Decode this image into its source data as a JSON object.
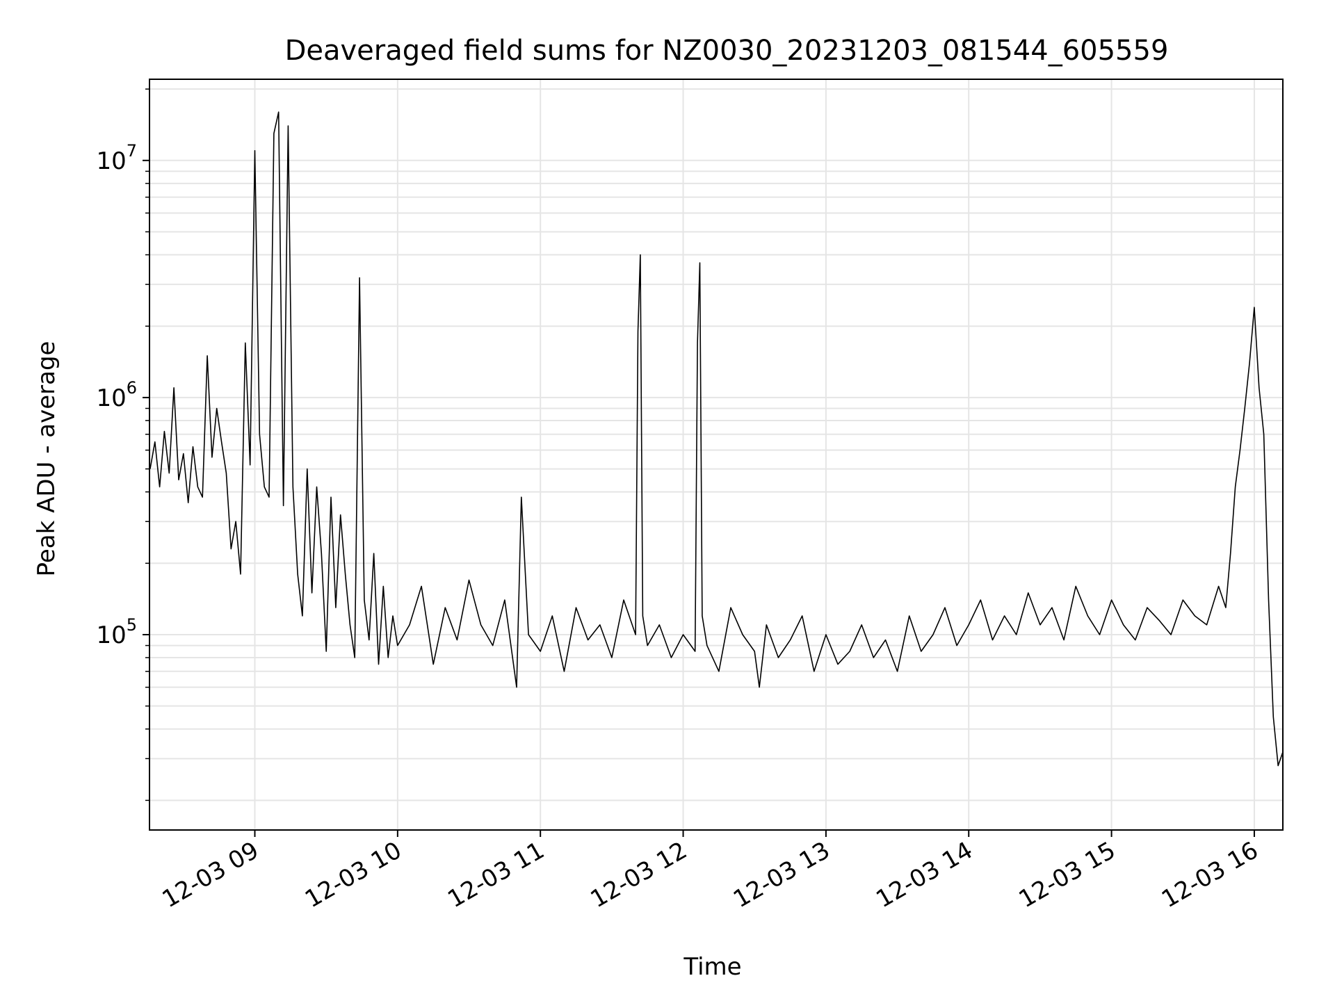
{
  "chart_data": {
    "type": "line",
    "title": "Deaveraged field sums for NZ0030_20231203_081544_605559",
    "xlabel": "Time",
    "ylabel": "Peak ADU - average",
    "x_type": "datetime",
    "xlim": [
      "2023-12-03 08:15:44",
      "2023-12-03 16:12:00"
    ],
    "ylim": [
      15000,
      22000000
    ],
    "y_scale": "log",
    "grid": true,
    "grid_minor_y": true,
    "line_color": "#000000",
    "grid_color": "#e5e5e5",
    "x_ticks": [
      {
        "time": "2023-12-03 09:00",
        "label": "12-03 09"
      },
      {
        "time": "2023-12-03 10:00",
        "label": "12-03 10"
      },
      {
        "time": "2023-12-03 11:00",
        "label": "12-03 11"
      },
      {
        "time": "2023-12-03 12:00",
        "label": "12-03 12"
      },
      {
        "time": "2023-12-03 13:00",
        "label": "12-03 13"
      },
      {
        "time": "2023-12-03 14:00",
        "label": "12-03 14"
      },
      {
        "time": "2023-12-03 15:00",
        "label": "12-03 15"
      },
      {
        "time": "2023-12-03 16:00",
        "label": "12-03 16"
      }
    ],
    "y_ticks": [
      {
        "value": 100000,
        "base": "10",
        "exp": "5"
      },
      {
        "value": 1000000,
        "base": "10",
        "exp": "6"
      },
      {
        "value": 10000000,
        "base": "10",
        "exp": "7"
      }
    ],
    "series": [
      {
        "x": [
          "2023-12-03 08:16",
          "2023-12-03 08:18",
          "2023-12-03 08:20",
          "2023-12-03 08:22",
          "2023-12-03 08:24",
          "2023-12-03 08:26",
          "2023-12-03 08:28",
          "2023-12-03 08:30",
          "2023-12-03 08:32",
          "2023-12-03 08:34",
          "2023-12-03 08:36",
          "2023-12-03 08:38",
          "2023-12-03 08:40",
          "2023-12-03 08:42",
          "2023-12-03 08:44",
          "2023-12-03 08:46",
          "2023-12-03 08:48",
          "2023-12-03 08:50",
          "2023-12-03 08:52",
          "2023-12-03 08:54",
          "2023-12-03 08:56",
          "2023-12-03 08:58",
          "2023-12-03 09:00",
          "2023-12-03 09:02",
          "2023-12-03 09:04",
          "2023-12-03 09:06",
          "2023-12-03 09:08",
          "2023-12-03 09:10",
          "2023-12-03 09:12",
          "2023-12-03 09:14",
          "2023-12-03 09:16",
          "2023-12-03 09:18",
          "2023-12-03 09:20",
          "2023-12-03 09:22",
          "2023-12-03 09:24",
          "2023-12-03 09:26",
          "2023-12-03 09:28",
          "2023-12-03 09:30",
          "2023-12-03 09:32",
          "2023-12-03 09:34",
          "2023-12-03 09:36",
          "2023-12-03 09:38",
          "2023-12-03 09:40",
          "2023-12-03 09:42",
          "2023-12-03 09:44",
          "2023-12-03 09:46",
          "2023-12-03 09:48",
          "2023-12-03 09:50",
          "2023-12-03 09:52",
          "2023-12-03 09:54",
          "2023-12-03 09:56",
          "2023-12-03 09:58",
          "2023-12-03 10:00",
          "2023-12-03 10:05",
          "2023-12-03 10:10",
          "2023-12-03 10:15",
          "2023-12-03 10:20",
          "2023-12-03 10:25",
          "2023-12-03 10:30",
          "2023-12-03 10:35",
          "2023-12-03 10:40",
          "2023-12-03 10:45",
          "2023-12-03 10:50",
          "2023-12-03 10:52",
          "2023-12-03 10:55",
          "2023-12-03 11:00",
          "2023-12-03 11:05",
          "2023-12-03 11:10",
          "2023-12-03 11:15",
          "2023-12-03 11:20",
          "2023-12-03 11:25",
          "2023-12-03 11:30",
          "2023-12-03 11:35",
          "2023-12-03 11:40",
          "2023-12-03 11:41",
          "2023-12-03 11:42",
          "2023-12-03 11:43",
          "2023-12-03 11:45",
          "2023-12-03 11:50",
          "2023-12-03 11:55",
          "2023-12-03 12:00",
          "2023-12-03 12:05",
          "2023-12-03 12:06",
          "2023-12-03 12:07",
          "2023-12-03 12:08",
          "2023-12-03 12:10",
          "2023-12-03 12:15",
          "2023-12-03 12:20",
          "2023-12-03 12:25",
          "2023-12-03 12:30",
          "2023-12-03 12:32",
          "2023-12-03 12:35",
          "2023-12-03 12:40",
          "2023-12-03 12:45",
          "2023-12-03 12:50",
          "2023-12-03 12:55",
          "2023-12-03 13:00",
          "2023-12-03 13:05",
          "2023-12-03 13:10",
          "2023-12-03 13:15",
          "2023-12-03 13:20",
          "2023-12-03 13:25",
          "2023-12-03 13:30",
          "2023-12-03 13:35",
          "2023-12-03 13:40",
          "2023-12-03 13:45",
          "2023-12-03 13:50",
          "2023-12-03 13:55",
          "2023-12-03 14:00",
          "2023-12-03 14:05",
          "2023-12-03 14:10",
          "2023-12-03 14:15",
          "2023-12-03 14:20",
          "2023-12-03 14:25",
          "2023-12-03 14:30",
          "2023-12-03 14:35",
          "2023-12-03 14:40",
          "2023-12-03 14:45",
          "2023-12-03 14:50",
          "2023-12-03 14:55",
          "2023-12-03 15:00",
          "2023-12-03 15:05",
          "2023-12-03 15:10",
          "2023-12-03 15:15",
          "2023-12-03 15:20",
          "2023-12-03 15:25",
          "2023-12-03 15:30",
          "2023-12-03 15:35",
          "2023-12-03 15:40",
          "2023-12-03 15:45",
          "2023-12-03 15:48",
          "2023-12-03 15:50",
          "2023-12-03 15:52",
          "2023-12-03 15:54",
          "2023-12-03 15:56",
          "2023-12-03 15:58",
          "2023-12-03 16:00",
          "2023-12-03 16:02",
          "2023-12-03 16:04",
          "2023-12-03 16:06",
          "2023-12-03 16:08",
          "2023-12-03 16:10",
          "2023-12-03 16:12"
        ],
        "y": [
          500000,
          650000,
          420000,
          720000,
          480000,
          1100000,
          450000,
          580000,
          360000,
          620000,
          420000,
          380000,
          1500000,
          560000,
          900000,
          650000,
          480000,
          230000,
          300000,
          180000,
          1700000,
          520000,
          11000000,
          700000,
          420000,
          380000,
          13000000,
          16000000,
          350000,
          14000000,
          420000,
          180000,
          120000,
          500000,
          150000,
          420000,
          220000,
          85000,
          380000,
          130000,
          320000,
          180000,
          110000,
          80000,
          3200000,
          140000,
          95000,
          220000,
          75000,
          160000,
          80000,
          120000,
          90000,
          110000,
          160000,
          75000,
          130000,
          95000,
          170000,
          110000,
          90000,
          140000,
          60000,
          380000,
          100000,
          85000,
          120000,
          70000,
          130000,
          95000,
          110000,
          80000,
          140000,
          100000,
          1900000,
          4000000,
          120000,
          90000,
          110000,
          80000,
          100000,
          85000,
          1700000,
          3700000,
          120000,
          90000,
          70000,
          130000,
          100000,
          85000,
          60000,
          110000,
          80000,
          95000,
          120000,
          70000,
          100000,
          75000,
          85000,
          110000,
          80000,
          95000,
          70000,
          120000,
          85000,
          100000,
          130000,
          90000,
          110000,
          140000,
          95000,
          120000,
          100000,
          150000,
          110000,
          130000,
          95000,
          160000,
          120000,
          100000,
          140000,
          110000,
          95000,
          130000,
          115000,
          100000,
          140000,
          120000,
          110000,
          160000,
          130000,
          220000,
          420000,
          600000,
          900000,
          1400000,
          2400000,
          1100000,
          700000,
          140000,
          45000,
          28000,
          32000
        ]
      }
    ]
  }
}
